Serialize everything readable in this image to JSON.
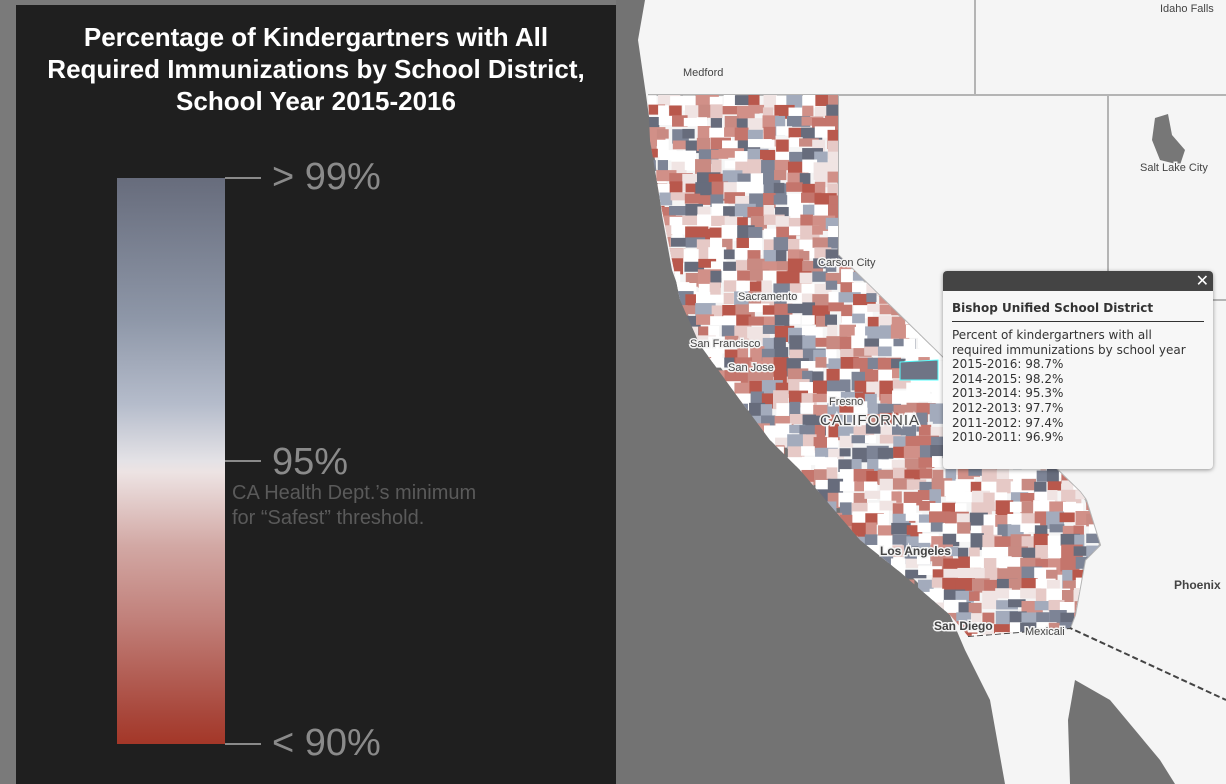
{
  "legend": {
    "title_lines": [
      "Percentage of Kindergartners with All",
      "Required Immunizations by School District,",
      "School Year 2015-2016"
    ],
    "top_label": "> 99%",
    "mid_label": "95%",
    "bottom_label": "< 90%",
    "note_lines": [
      "CA Health Dept.’s minimum",
      "for “Safest” threshold."
    ],
    "colors": {
      "high": "#676c7c",
      "mid": "#ede3e3",
      "low": "#a43728"
    }
  },
  "map": {
    "labels": {
      "medford": "Medford",
      "idaho_falls": "Idaho Falls",
      "salt_lake": "Salt Lake City",
      "carson_city": "Carson City",
      "sacramento": "Sacramento",
      "san_francisco": "San Francisco",
      "san_jose": "San Jose",
      "fresno": "Fresno",
      "california": "CALIFORNIA",
      "los_angeles": "Los Angeles",
      "san_diego": "San Diego",
      "mexicali": "Mexicali",
      "phoenix": "Phoenix"
    },
    "colors": {
      "land": "#f5f5f5",
      "water": "#737373",
      "borders": "#b4b4b4"
    }
  },
  "popup": {
    "title": "Bishop Unified School District",
    "description": "Percent of kindergartners with all required immunizations by school year",
    "rows": [
      "2015-2016: 98.7%",
      "2014-2015: 98.2%",
      "2013-2014: 95.3%",
      "2012-2013: 97.7%",
      "2011-2012: 97.4%",
      "2010-2011: 96.9%"
    ],
    "close_icon": "close-icon"
  }
}
